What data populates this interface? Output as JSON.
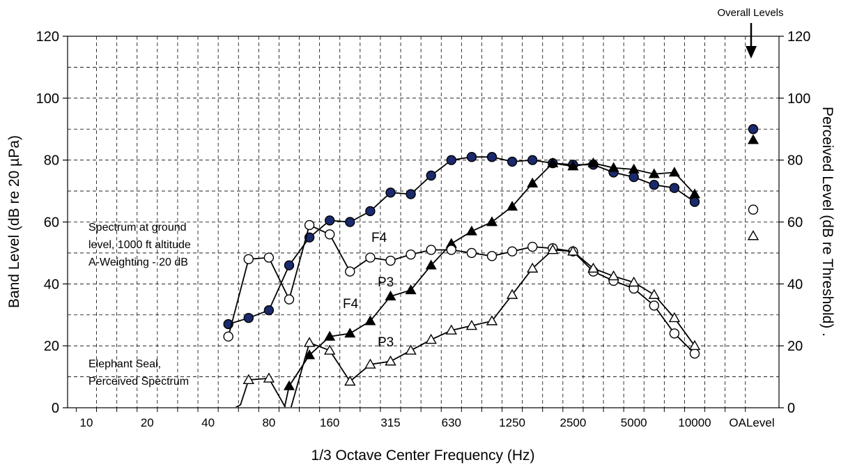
{
  "chart_data": {
    "type": "line",
    "xlabel": "1/3 Octave Center Frequency (Hz)",
    "ylabel": "Band Level (dB re 20 µPa)",
    "y2label": "Perceived Level (dB re Threshold)  .",
    "ylim": [
      0,
      120
    ],
    "y2lim": [
      0,
      120
    ],
    "yticks": [
      "0",
      "20",
      "40",
      "60",
      "80",
      "100",
      "120"
    ],
    "xticks": [
      {
        "index": 0,
        "label": "10"
      },
      {
        "index": 3,
        "label": "20"
      },
      {
        "index": 6,
        "label": "40"
      },
      {
        "index": 9,
        "label": "80"
      },
      {
        "index": 12,
        "label": "160"
      },
      {
        "index": 15,
        "label": "315"
      },
      {
        "index": 18,
        "label": "630"
      },
      {
        "index": 21,
        "label": "1250"
      },
      {
        "index": 24,
        "label": "2500"
      },
      {
        "index": 27,
        "label": "5000"
      },
      {
        "index": 30,
        "label": "10000"
      },
      {
        "index": 32.5,
        "label": "OALevel"
      }
    ],
    "grid": true,
    "bands": [
      "50",
      "63",
      "80",
      "100",
      "125",
      "160",
      "200",
      "250",
      "315",
      "400",
      "500",
      "630",
      "800",
      "1000",
      "1250",
      "1600",
      "2000",
      "2500",
      "3150",
      "4000",
      "5000",
      "6300",
      "8000",
      "10000"
    ],
    "series": [
      {
        "marker": "filled-circle",
        "x": [
          7,
          8,
          9,
          10,
          11,
          12,
          13,
          14,
          15,
          16,
          17,
          18,
          19,
          20,
          21,
          22,
          23,
          24,
          25,
          26,
          27,
          28,
          29,
          30
        ],
        "values": [
          27,
          29,
          31.5,
          46,
          55,
          60.5,
          60,
          63.5,
          69.5,
          69,
          75,
          80,
          81,
          81,
          79.5,
          80,
          79,
          78.5,
          78.5,
          76,
          74.5,
          72,
          71,
          66.5
        ],
        "overall": 90
      },
      {
        "marker": "filled-triangle",
        "x": [
          10,
          11,
          12,
          13,
          14,
          15,
          16,
          17,
          18,
          19,
          20,
          21,
          22,
          23,
          24,
          25,
          26,
          27,
          28,
          29,
          30
        ],
        "values": [
          7,
          17,
          23,
          24,
          28,
          36,
          38,
          46,
          53,
          57,
          60,
          65,
          72.5,
          79,
          78,
          79,
          77.5,
          77,
          75.5,
          76,
          69
        ],
        "overall": 86.5,
        "line_extension": {
          "x": [
            9.7,
            10
          ],
          "values": [
            -2,
            7
          ]
        }
      },
      {
        "marker": "open-circle",
        "x": [
          7,
          8,
          9,
          10,
          11,
          12,
          13,
          14,
          15,
          16,
          17,
          18,
          19,
          20,
          21,
          22,
          23,
          24,
          25,
          26,
          27,
          28,
          29,
          30
        ],
        "values": [
          23,
          48,
          48.5,
          35,
          59,
          56,
          44,
          48.5,
          47.5,
          49.5,
          51,
          51,
          50,
          49,
          50.5,
          52,
          51.5,
          50.5,
          44,
          41,
          38.5,
          33,
          24,
          17.5
        ],
        "overall": 64
      },
      {
        "marker": "open-triangle",
        "x": [
          8,
          9,
          10,
          11,
          12,
          13,
          14,
          15,
          16,
          17,
          18,
          19,
          20,
          21,
          22,
          23,
          24,
          25,
          26,
          27,
          28,
          29,
          30
        ],
        "values": [
          9,
          9.5,
          -2,
          21,
          18.5,
          8.5,
          14,
          15,
          18.5,
          22,
          25,
          26.5,
          28,
          36.5,
          45,
          51,
          50.5,
          45,
          42.5,
          40.5,
          36.5,
          29,
          20
        ],
        "overall": 55.5,
        "line_extension": {
          "x": [
            6.8,
            7.6,
            8
          ],
          "values": [
            -2,
            1,
            9
          ]
        }
      }
    ],
    "annotations": {
      "overall_levels": "Overall Levels",
      "spectrum_note": [
        "Spectrum at ground",
        "level, 1000 ft altitude",
        "A-Weighting - 20 dB"
      ],
      "seal_note": [
        "Elephant Seal,",
        "Perceived Spectrum"
      ],
      "f4_upper": "F4",
      "p3_upper": "P3",
      "f4_lower": "F4",
      "p3_lower": "P3"
    }
  }
}
